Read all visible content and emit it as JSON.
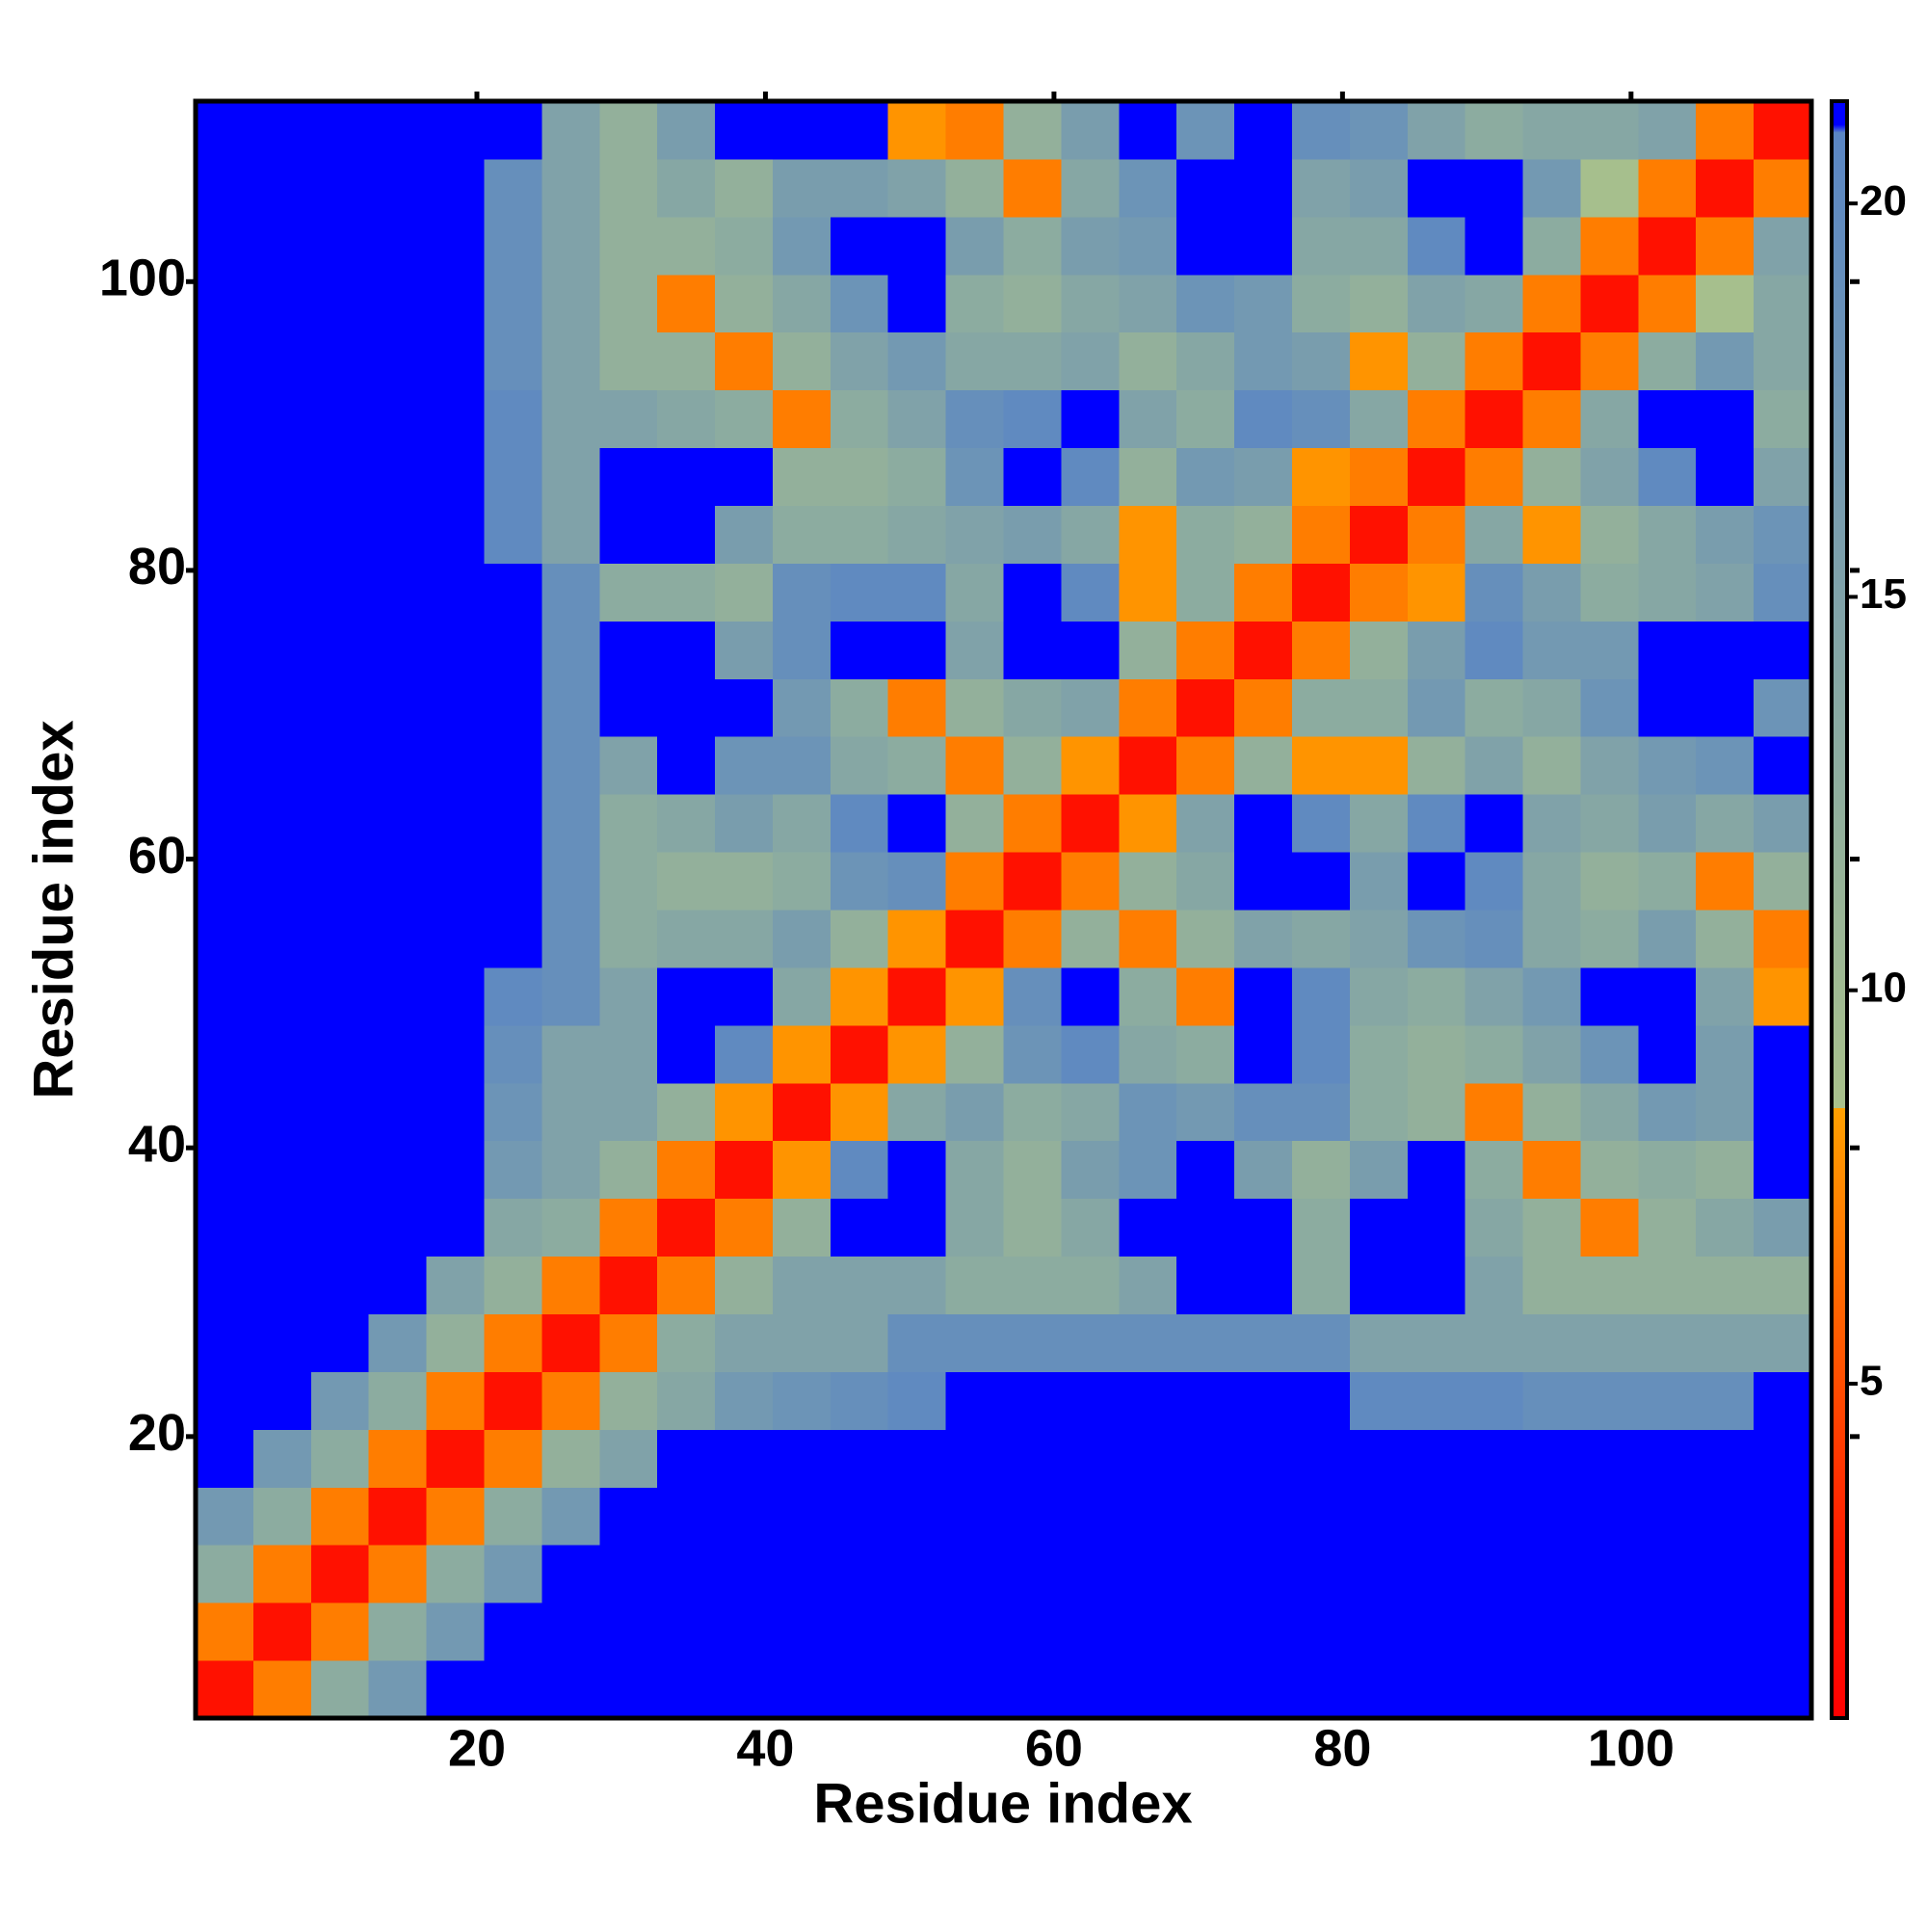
{
  "chart_data": {
    "type": "heatmap",
    "xlabel": "Residue index",
    "ylabel": "Residue index",
    "xlim": [
      0.5,
      112.5
    ],
    "ylim": [
      0.5,
      112.5
    ],
    "xticks": [
      20,
      40,
      60,
      80,
      100
    ],
    "yticks": [
      20,
      40,
      60,
      80,
      100
    ],
    "x_edges": [
      0.5,
      4.5,
      8.5,
      12.5,
      16.5,
      20.5,
      24.5,
      28.5,
      32.5,
      36.5,
      40.5,
      44.5,
      48.5,
      52.5,
      56.5,
      60.5,
      64.5,
      68.5,
      72.5,
      76.5,
      80.5,
      84.5,
      88.5,
      92.5,
      96.5,
      100.5,
      104.5,
      108.5,
      112.5
    ],
    "y_edges": [
      0.5,
      4.5,
      8.5,
      12.5,
      16.5,
      20.5,
      24.5,
      28.5,
      32.5,
      36.5,
      40.5,
      44.5,
      48.5,
      52.5,
      56.5,
      60.5,
      64.5,
      68.5,
      72.5,
      76.5,
      80.5,
      84.5,
      88.5,
      92.5,
      96.5,
      100.5,
      104.5,
      108.5,
      112.5
    ],
    "z": [
      [
        2,
        7,
        13,
        17,
        21,
        21,
        21,
        21,
        21,
        21,
        21,
        21,
        21,
        21,
        21,
        21,
        21,
        21,
        21,
        21,
        21,
        21,
        21,
        21,
        21,
        21,
        21,
        21
      ],
      [
        7,
        2,
        7,
        13,
        17,
        21,
        21,
        21,
        21,
        21,
        21,
        21,
        21,
        21,
        21,
        21,
        21,
        21,
        21,
        21,
        21,
        21,
        21,
        21,
        21,
        21,
        21,
        21
      ],
      [
        13,
        7,
        2,
        7,
        13,
        17,
        21,
        21,
        21,
        21,
        21,
        21,
        21,
        21,
        21,
        21,
        21,
        21,
        21,
        21,
        21,
        21,
        21,
        21,
        21,
        21,
        21,
        21
      ],
      [
        17,
        13,
        7,
        2,
        7,
        13,
        17,
        21,
        21,
        21,
        21,
        21,
        21,
        21,
        21,
        21,
        21,
        21,
        21,
        21,
        21,
        21,
        21,
        21,
        21,
        21,
        21,
        21
      ],
      [
        21,
        17,
        13,
        7,
        2,
        7,
        12,
        15,
        21,
        21,
        21,
        21,
        21,
        21,
        21,
        21,
        21,
        21,
        21,
        21,
        21,
        21,
        21,
        21,
        21,
        21,
        21,
        21
      ],
      [
        21,
        21,
        17,
        13,
        7,
        2,
        7,
        12,
        14,
        17,
        18,
        19,
        20,
        21,
        21,
        21,
        21,
        21,
        21,
        21,
        20,
        20,
        20,
        19,
        19,
        19,
        19,
        21
      ],
      [
        21,
        21,
        21,
        17,
        12,
        7,
        2,
        7,
        13,
        15,
        15,
        15,
        19,
        19,
        19,
        19,
        19,
        19,
        19,
        19,
        15,
        15,
        15,
        15,
        15,
        15,
        15,
        15
      ],
      [
        21,
        21,
        21,
        21,
        15,
        12,
        7,
        2,
        7,
        12,
        15,
        15,
        15,
        13,
        13,
        13,
        15,
        21,
        21,
        13,
        21,
        21,
        15,
        12,
        12,
        12,
        12,
        12
      ],
      [
        21,
        21,
        21,
        21,
        21,
        14,
        13,
        7,
        2,
        7,
        12,
        21,
        21,
        14,
        12,
        14,
        21,
        21,
        21,
        13,
        21,
        21,
        14,
        12,
        7,
        12,
        14,
        16
      ],
      [
        21,
        21,
        21,
        21,
        21,
        17,
        15,
        12,
        7,
        2,
        8,
        20,
        21,
        14,
        12,
        16,
        18,
        21,
        16,
        12,
        16,
        21,
        13,
        7,
        12,
        13,
        12,
        21
      ],
      [
        21,
        21,
        21,
        21,
        21,
        18,
        15,
        15,
        12,
        8,
        2,
        8,
        14,
        16,
        13,
        14,
        18,
        17,
        19,
        19,
        13,
        12,
        7,
        12,
        14,
        17,
        16,
        21
      ],
      [
        21,
        21,
        21,
        21,
        21,
        19,
        15,
        15,
        21,
        20,
        8,
        2,
        8,
        12,
        18,
        20,
        14,
        13,
        21,
        20,
        13,
        12,
        13,
        15,
        18,
        21,
        16,
        21
      ],
      [
        21,
        21,
        21,
        21,
        21,
        20,
        19,
        15,
        21,
        21,
        14,
        8,
        2,
        8,
        19,
        21,
        13,
        7,
        21,
        20,
        14,
        13,
        15,
        17,
        21,
        21,
        15,
        8
      ],
      [
        21,
        21,
        21,
        21,
        21,
        21,
        19,
        13,
        14,
        14,
        16,
        12,
        8,
        2,
        7,
        12,
        7,
        12,
        15,
        14,
        15,
        18,
        19,
        14,
        13,
        16,
        12,
        7
      ],
      [
        21,
        21,
        21,
        21,
        21,
        21,
        19,
        13,
        12,
        12,
        13,
        18,
        19,
        7,
        2,
        7,
        12,
        14,
        21,
        21,
        16,
        21,
        20,
        14,
        12,
        13,
        7,
        12
      ],
      [
        21,
        21,
        21,
        21,
        21,
        21,
        19,
        13,
        14,
        16,
        14,
        20,
        21,
        12,
        7,
        2,
        8,
        15,
        21,
        20,
        14,
        20,
        21,
        15,
        14,
        16,
        14,
        16
      ],
      [
        21,
        21,
        21,
        21,
        21,
        21,
        19,
        15,
        21,
        18,
        18,
        14,
        13,
        7,
        12,
        8,
        2,
        7,
        12,
        8,
        8,
        12,
        15,
        12,
        15,
        17,
        18,
        21
      ],
      [
        21,
        21,
        21,
        21,
        21,
        21,
        19,
        21,
        21,
        21,
        17,
        13,
        7,
        12,
        14,
        15,
        7,
        2,
        7,
        13,
        13,
        17,
        13,
        14,
        18,
        21,
        21,
        18
      ],
      [
        21,
        21,
        21,
        21,
        21,
        21,
        19,
        21,
        21,
        16,
        19,
        21,
        21,
        15,
        21,
        21,
        12,
        7,
        2,
        7,
        12,
        16,
        20,
        17,
        17,
        21,
        21,
        21
      ],
      [
        21,
        21,
        21,
        21,
        21,
        21,
        19,
        13,
        13,
        12,
        19,
        20,
        20,
        14,
        21,
        20,
        8,
        13,
        7,
        2,
        7,
        8,
        19,
        16,
        13,
        14,
        15,
        19
      ],
      [
        21,
        21,
        21,
        21,
        21,
        20,
        15,
        21,
        21,
        16,
        13,
        13,
        14,
        15,
        16,
        14,
        8,
        13,
        12,
        7,
        2,
        7,
        14,
        8,
        12,
        14,
        16,
        18
      ],
      [
        21,
        21,
        21,
        21,
        21,
        20,
        15,
        21,
        21,
        21,
        12,
        12,
        13,
        18,
        21,
        20,
        12,
        17,
        16,
        8,
        7,
        2,
        7,
        12,
        15,
        20,
        21,
        15
      ],
      [
        21,
        21,
        21,
        21,
        21,
        20,
        15,
        15,
        14,
        13,
        7,
        13,
        15,
        19,
        20,
        21,
        15,
        13,
        20,
        19,
        14,
        7,
        2,
        7,
        14,
        21,
        21,
        13
      ],
      [
        21,
        21,
        21,
        21,
        21,
        19,
        15,
        12,
        12,
        7,
        12,
        15,
        17,
        14,
        14,
        15,
        12,
        14,
        17,
        16,
        8,
        12,
        7,
        2,
        7,
        13,
        17,
        14
      ],
      [
        21,
        21,
        21,
        21,
        21,
        19,
        15,
        12,
        7,
        12,
        14,
        18,
        21,
        13,
        12,
        14,
        15,
        18,
        17,
        13,
        12,
        15,
        14,
        7,
        2,
        7,
        9,
        14
      ],
      [
        21,
        21,
        21,
        21,
        21,
        19,
        15,
        12,
        12,
        13,
        17,
        21,
        21,
        16,
        13,
        16,
        17,
        21,
        21,
        14,
        14,
        20,
        21,
        13,
        7,
        2,
        7,
        15
      ],
      [
        21,
        21,
        21,
        21,
        21,
        19,
        15,
        12,
        14,
        12,
        16,
        16,
        15,
        12,
        7,
        14,
        18,
        21,
        21,
        15,
        16,
        21,
        21,
        17,
        9,
        7,
        2,
        7
      ],
      [
        21,
        21,
        21,
        21,
        21,
        21,
        15,
        12,
        16,
        21,
        21,
        21,
        8,
        7,
        12,
        16,
        21,
        18,
        21,
        19,
        18,
        15,
        13,
        14,
        14,
        15,
        7,
        2
      ]
    ],
    "zlim": [
      0.75,
      21.3
    ],
    "zticks": [
      5,
      10,
      15,
      20
    ],
    "colorscale": [
      [
        0.75,
        "#ff0000"
      ],
      [
        3,
        "#ff1e00"
      ],
      [
        8.5,
        "#ffa000"
      ],
      [
        8.5,
        "#a9c18b"
      ],
      [
        20.9,
        "#5a86c4"
      ],
      [
        21,
        "#0000ff"
      ],
      [
        21.3,
        "#0000ff"
      ]
    ]
  }
}
